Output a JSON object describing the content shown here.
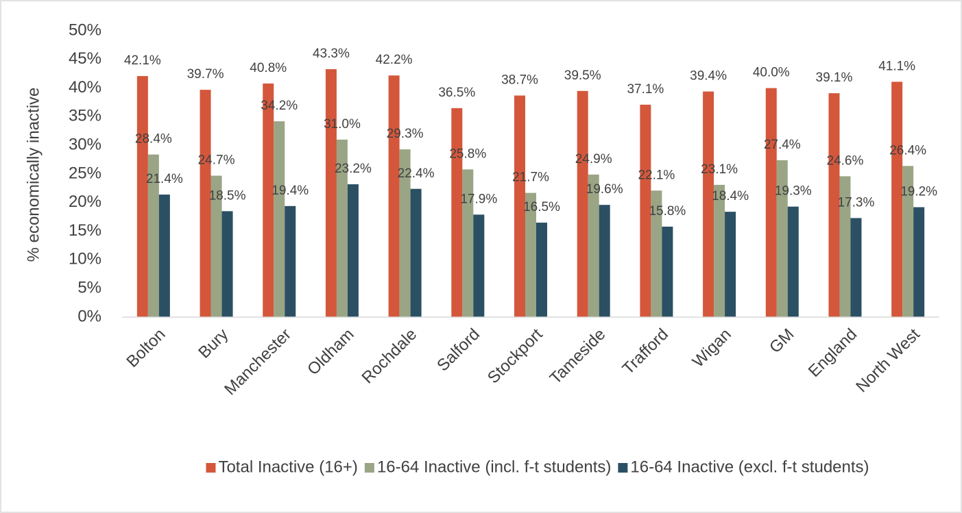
{
  "chart_data": {
    "type": "bar",
    "y_label": "% economically inactive",
    "categories": [
      "Bolton",
      "Bury",
      "Manchester",
      "Oldham",
      "Rochdale",
      "Salford",
      "Stockport",
      "Tameside",
      "Trafford",
      "Wigan",
      "GM",
      "England",
      "North West"
    ],
    "series": [
      {
        "name": "Total Inactive (16+)",
        "color": "#d4573b",
        "values": [
          42.1,
          39.7,
          40.8,
          43.3,
          42.2,
          36.5,
          38.7,
          39.5,
          37.1,
          39.4,
          40.0,
          39.1,
          41.1
        ],
        "value_labels": [
          "42.1%",
          "39.7%",
          "40.8%",
          "43.3%",
          "42.2%",
          "36.5%",
          "38.7%",
          "39.5%",
          "37.1%",
          "39.4%",
          "40.0%",
          "39.1%",
          "41.1%"
        ]
      },
      {
        "name": "16-64 Inactive (incl. f-t students)",
        "color": "#9aa585",
        "values": [
          28.4,
          24.7,
          34.2,
          31.0,
          29.3,
          25.8,
          21.7,
          24.9,
          22.1,
          23.1,
          27.4,
          24.6,
          26.4
        ],
        "value_labels": [
          "28.4%",
          "24.7%",
          "34.2%",
          "31.0%",
          "29.3%",
          "25.8%",
          "21.7%",
          "24.9%",
          "22.1%",
          "23.1%",
          "27.4%",
          "24.6%",
          "26.4%"
        ]
      },
      {
        "name": "16-64 Inactive (excl. f-t students)",
        "color": "#2b5063",
        "values": [
          21.4,
          18.5,
          19.4,
          23.2,
          22.4,
          17.9,
          16.5,
          19.6,
          15.8,
          18.4,
          19.3,
          17.3,
          19.2
        ],
        "value_labels": [
          "21.4%",
          "18.5%",
          "19.4%",
          "23.2%",
          "22.4%",
          "17.9%",
          "16.5%",
          "19.6%",
          "15.8%",
          "18.4%",
          "19.3%",
          "17.3%",
          "19.2%"
        ]
      }
    ],
    "ylim": [
      0,
      50
    ],
    "yticks": [
      {
        "value": 0,
        "label": "0%"
      },
      {
        "value": 5,
        "label": "5%"
      },
      {
        "value": 10,
        "label": "10%"
      },
      {
        "value": 15,
        "label": "15%"
      },
      {
        "value": 20,
        "label": "20%"
      },
      {
        "value": 25,
        "label": "25%"
      },
      {
        "value": 30,
        "label": "30%"
      },
      {
        "value": 35,
        "label": "35%"
      },
      {
        "value": 40,
        "label": "40%"
      },
      {
        "value": 45,
        "label": "45%"
      },
      {
        "value": 50,
        "label": "50%"
      }
    ],
    "grid": false,
    "legend": "bottom"
  }
}
